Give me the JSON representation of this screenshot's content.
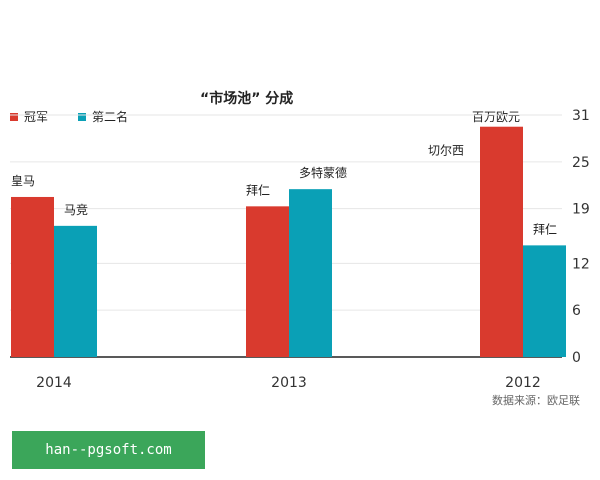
{
  "colors": {
    "champion": "#d93a2e",
    "runner_up": "#0aa0b6",
    "grid": "#e6e6e6",
    "axis": "#222222"
  },
  "source_text": "数据来源：欧足联",
  "watermark": "han--pgsoft.com",
  "chart_data": {
    "type": "bar",
    "title": "“市场池” 分成",
    "unit_label": "百万欧元",
    "categories": [
      "2014",
      "2013",
      "2012"
    ],
    "series": [
      {
        "name": "冠军",
        "values": [
          20.5,
          19.3,
          29.5
        ],
        "labels": [
          "皇马",
          "拜仁",
          "切尔西"
        ]
      },
      {
        "name": "第二名",
        "values": [
          16.8,
          21.5,
          14.3
        ],
        "labels": [
          "马竞",
          "多特蒙德",
          "拜仁"
        ]
      }
    ],
    "yticks": [
      0,
      6,
      12,
      19,
      25,
      31
    ],
    "ylim": [
      0,
      31
    ],
    "legend": "top-left",
    "grid": true
  }
}
